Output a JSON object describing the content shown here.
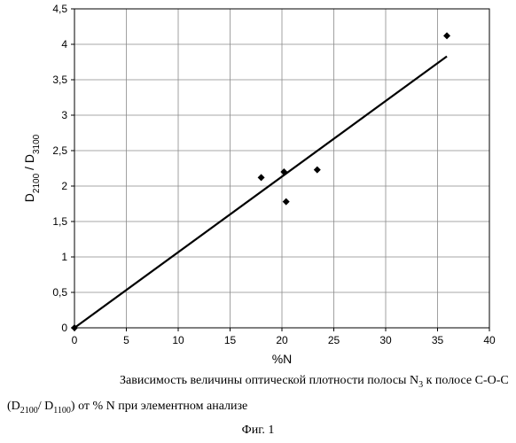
{
  "chart_data": {
    "type": "scatter",
    "xlabel": "%N",
    "ylabel": {
      "main": "D",
      "sub1": "2100",
      "sep": " / D",
      "sub2": "3100"
    },
    "xlim": [
      0,
      40
    ],
    "ylim": [
      0,
      4.5
    ],
    "x_ticks": [
      "0",
      "5",
      "10",
      "15",
      "20",
      "25",
      "30",
      "35",
      "40"
    ],
    "y_ticks": [
      "0",
      "0,5",
      "1",
      "1,5",
      "2",
      "2,5",
      "3",
      "3,5",
      "4",
      "4,5"
    ],
    "grid": true,
    "points": [
      {
        "x": 0,
        "y": 0
      },
      {
        "x": 18,
        "y": 2.12
      },
      {
        "x": 20.2,
        "y": 2.2
      },
      {
        "x": 20.4,
        "y": 1.78
      },
      {
        "x": 23.4,
        "y": 2.23
      },
      {
        "x": 35.9,
        "y": 4.12
      }
    ],
    "trendline": {
      "x1": 0,
      "y1": 0,
      "x2": 35.9,
      "y2": 3.83
    }
  },
  "caption": {
    "line1_a": "Зависимость величины оптической плотности полосы N",
    "line1_sub": "3",
    "line1_b": " к полосе С-О-С",
    "line2_a": "(D",
    "line2_sub1": "2100",
    "line2_b": "/ D",
    "line2_sub2": "1100",
    "line2_c": ") от % N при элементном анализе",
    "figure": "Фиг. 1"
  }
}
